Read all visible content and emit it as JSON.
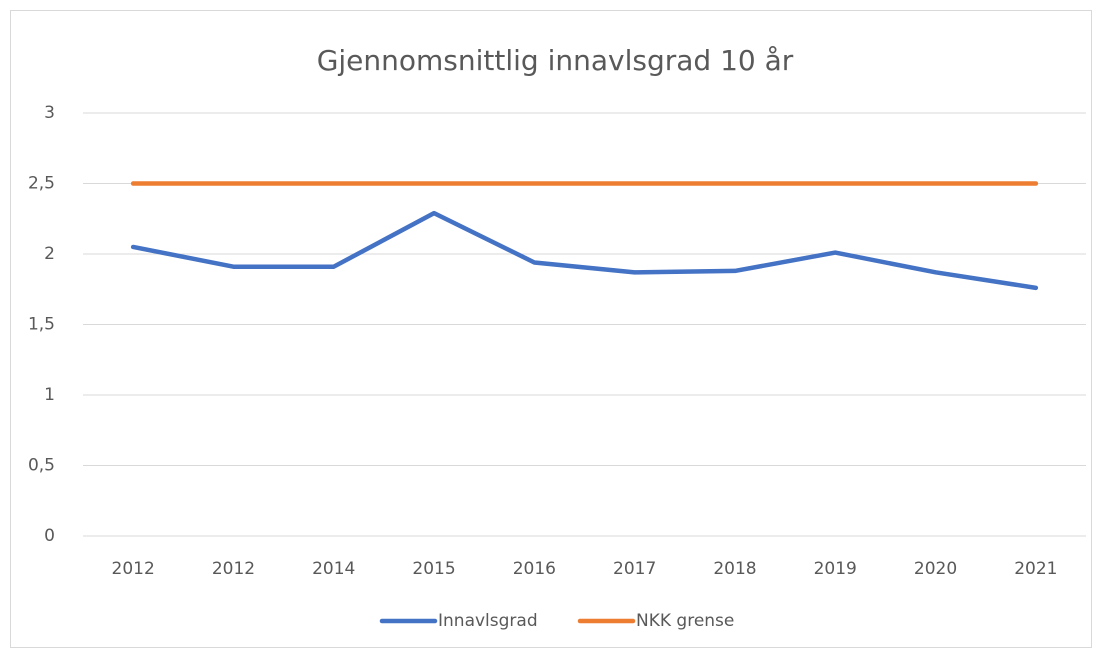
{
  "chart_data": {
    "type": "line",
    "title": "Gjennomsnittlig innavlsgrad 10 år",
    "categories": [
      "2012",
      "2012",
      "2014",
      "2015",
      "2016",
      "2017",
      "2018",
      "2019",
      "2020",
      "2021"
    ],
    "series": [
      {
        "name": "Innavlsgrad",
        "color": "#4472c4",
        "values": [
          2.05,
          1.91,
          1.91,
          2.29,
          1.94,
          1.87,
          1.88,
          2.01,
          1.87,
          1.76
        ]
      },
      {
        "name": "NKK grense",
        "color": "#ed7d31",
        "values": [
          2.5,
          2.5,
          2.5,
          2.5,
          2.5,
          2.5,
          2.5,
          2.5,
          2.5,
          2.5
        ]
      }
    ],
    "ylim": [
      0,
      3
    ],
    "yticks": [
      0,
      {
        "value": 0.5,
        "label": "0,5"
      },
      1,
      {
        "value": 1.5,
        "label": "1,5"
      },
      2,
      {
        "value": 2.5,
        "label": "2,5"
      },
      3
    ],
    "grid": true,
    "legend": "bottom"
  }
}
